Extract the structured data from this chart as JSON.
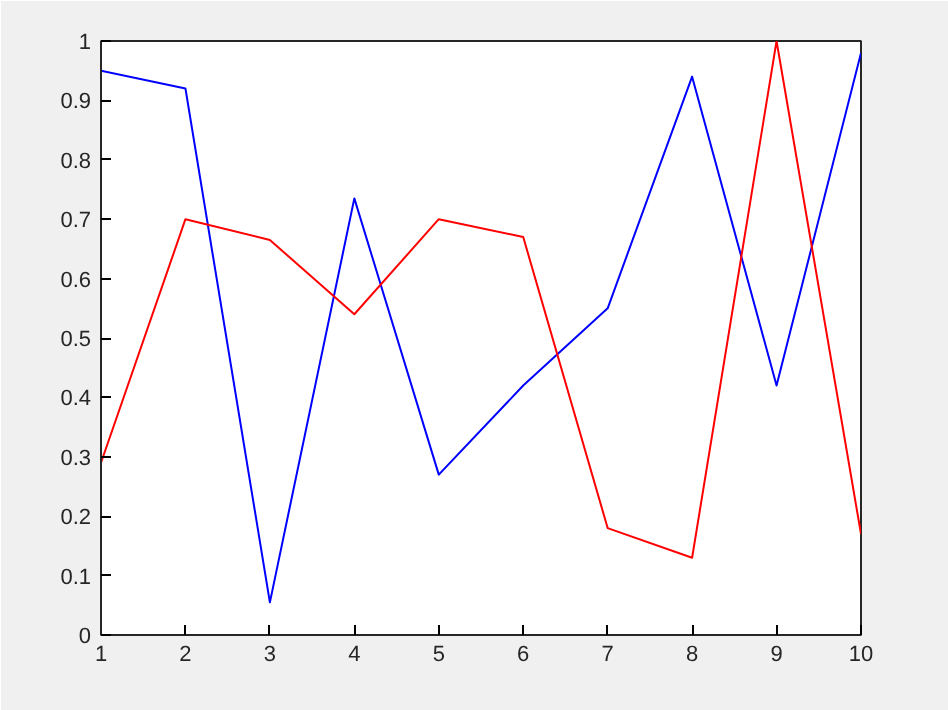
{
  "chart_data": {
    "type": "line",
    "x": [
      1,
      2,
      3,
      4,
      5,
      6,
      7,
      8,
      9,
      10
    ],
    "series": [
      {
        "color": "#0000ff",
        "values": [
          0.95,
          0.92,
          0.055,
          0.735,
          0.27,
          0.42,
          0.55,
          0.94,
          0.42,
          0.98
        ]
      },
      {
        "color": "#ff0000",
        "values": [
          0.29,
          0.7,
          0.665,
          0.54,
          0.7,
          0.67,
          0.18,
          0.13,
          1.0,
          0.17
        ]
      }
    ],
    "xlim": [
      1,
      10
    ],
    "ylim": [
      0,
      1
    ],
    "xticks": [
      1,
      2,
      3,
      4,
      5,
      6,
      7,
      8,
      9,
      10
    ],
    "yticks": [
      0,
      0.1,
      0.2,
      0.3,
      0.4,
      0.5,
      0.6,
      0.7,
      0.8,
      0.9,
      1
    ],
    "grid": false,
    "marker": "none",
    "line_style": "solid"
  }
}
